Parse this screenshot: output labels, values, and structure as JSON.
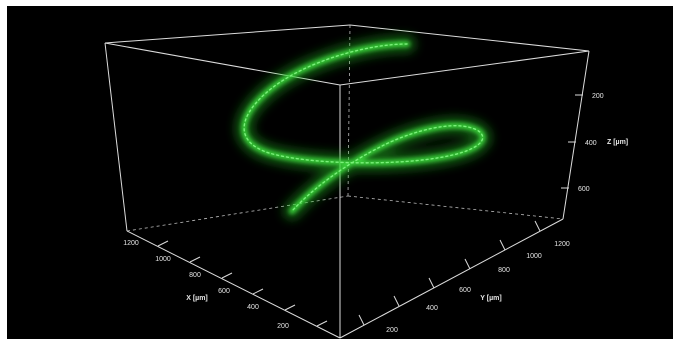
{
  "colors": {
    "background": "#000000",
    "box_lines": "#dcdcdc",
    "specimen": "#39d639"
  },
  "axes": {
    "x": {
      "title": "X [µm]",
      "ticks": [
        "200",
        "400",
        "600",
        "800",
        "1000",
        "1200"
      ]
    },
    "y": {
      "title": "Y [µm]",
      "ticks": [
        "200",
        "400",
        "600",
        "800",
        "1000",
        "1200"
      ]
    },
    "z": {
      "title": "Z [µm]",
      "ticks": [
        "200",
        "400",
        "600"
      ]
    }
  }
}
